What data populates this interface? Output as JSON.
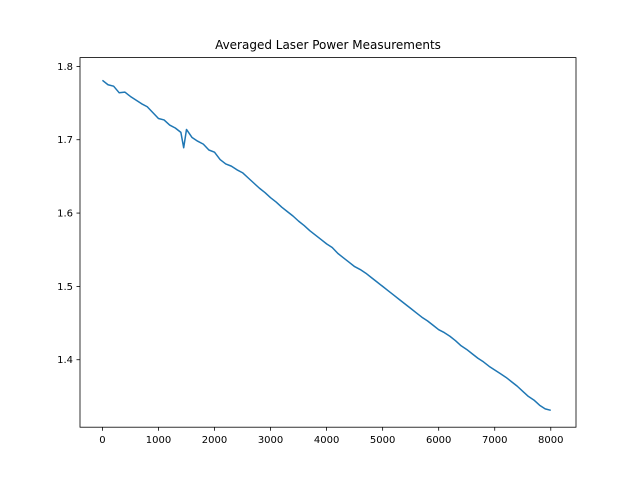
{
  "chart_data": {
    "type": "line",
    "title": "Averaged Laser Power Measurements",
    "xlabel": "",
    "ylabel": "",
    "xlim": [
      -400,
      8450
    ],
    "ylim": [
      1.308,
      1.812
    ],
    "xticks": [
      0,
      1000,
      2000,
      3000,
      4000,
      5000,
      6000,
      7000,
      8000
    ],
    "xtick_labels": [
      "0",
      "1000",
      "2000",
      "3000",
      "4000",
      "5000",
      "6000",
      "7000",
      "8000"
    ],
    "yticks": [
      1.4,
      1.5,
      1.6,
      1.7,
      1.8
    ],
    "ytick_labels": [
      "1.4",
      "1.5",
      "1.6",
      "1.7",
      "1.8"
    ],
    "grid": false,
    "legend": "none",
    "line_color": "#1f77b4",
    "series": [
      {
        "x": [
          0,
          100,
          200,
          300,
          400,
          500,
          600,
          700,
          800,
          900,
          1000,
          1100,
          1200,
          1300,
          1400,
          1450,
          1500,
          1600,
          1700,
          1800,
          1900,
          2000,
          2100,
          2200,
          2300,
          2400,
          2500,
          2600,
          2700,
          2800,
          2900,
          3000,
          3100,
          3200,
          3300,
          3400,
          3500,
          3600,
          3700,
          3800,
          3900,
          4000,
          4100,
          4200,
          4300,
          4400,
          4500,
          4600,
          4700,
          4800,
          4900,
          5000,
          5100,
          5200,
          5300,
          5400,
          5500,
          5600,
          5700,
          5800,
          5900,
          6000,
          6100,
          6200,
          6300,
          6400,
          6500,
          6600,
          6700,
          6800,
          6900,
          7000,
          7100,
          7200,
          7300,
          7400,
          7500,
          7600,
          7700,
          7800,
          7900,
          8000
        ],
        "y": [
          1.781,
          1.775,
          1.773,
          1.764,
          1.765,
          1.759,
          1.754,
          1.749,
          1.745,
          1.737,
          1.729,
          1.727,
          1.72,
          1.716,
          1.71,
          1.689,
          1.714,
          1.703,
          1.698,
          1.694,
          1.686,
          1.683,
          1.673,
          1.667,
          1.664,
          1.659,
          1.655,
          1.648,
          1.641,
          1.634,
          1.628,
          1.621,
          1.615,
          1.608,
          1.602,
          1.596,
          1.589,
          1.583,
          1.576,
          1.57,
          1.564,
          1.558,
          1.553,
          1.545,
          1.539,
          1.533,
          1.527,
          1.523,
          1.518,
          1.512,
          1.506,
          1.5,
          1.494,
          1.488,
          1.482,
          1.476,
          1.47,
          1.464,
          1.458,
          1.453,
          1.447,
          1.441,
          1.437,
          1.432,
          1.426,
          1.419,
          1.414,
          1.408,
          1.402,
          1.397,
          1.391,
          1.386,
          1.381,
          1.376,
          1.37,
          1.364,
          1.357,
          1.35,
          1.345,
          1.338,
          1.333,
          1.331
        ]
      }
    ]
  }
}
